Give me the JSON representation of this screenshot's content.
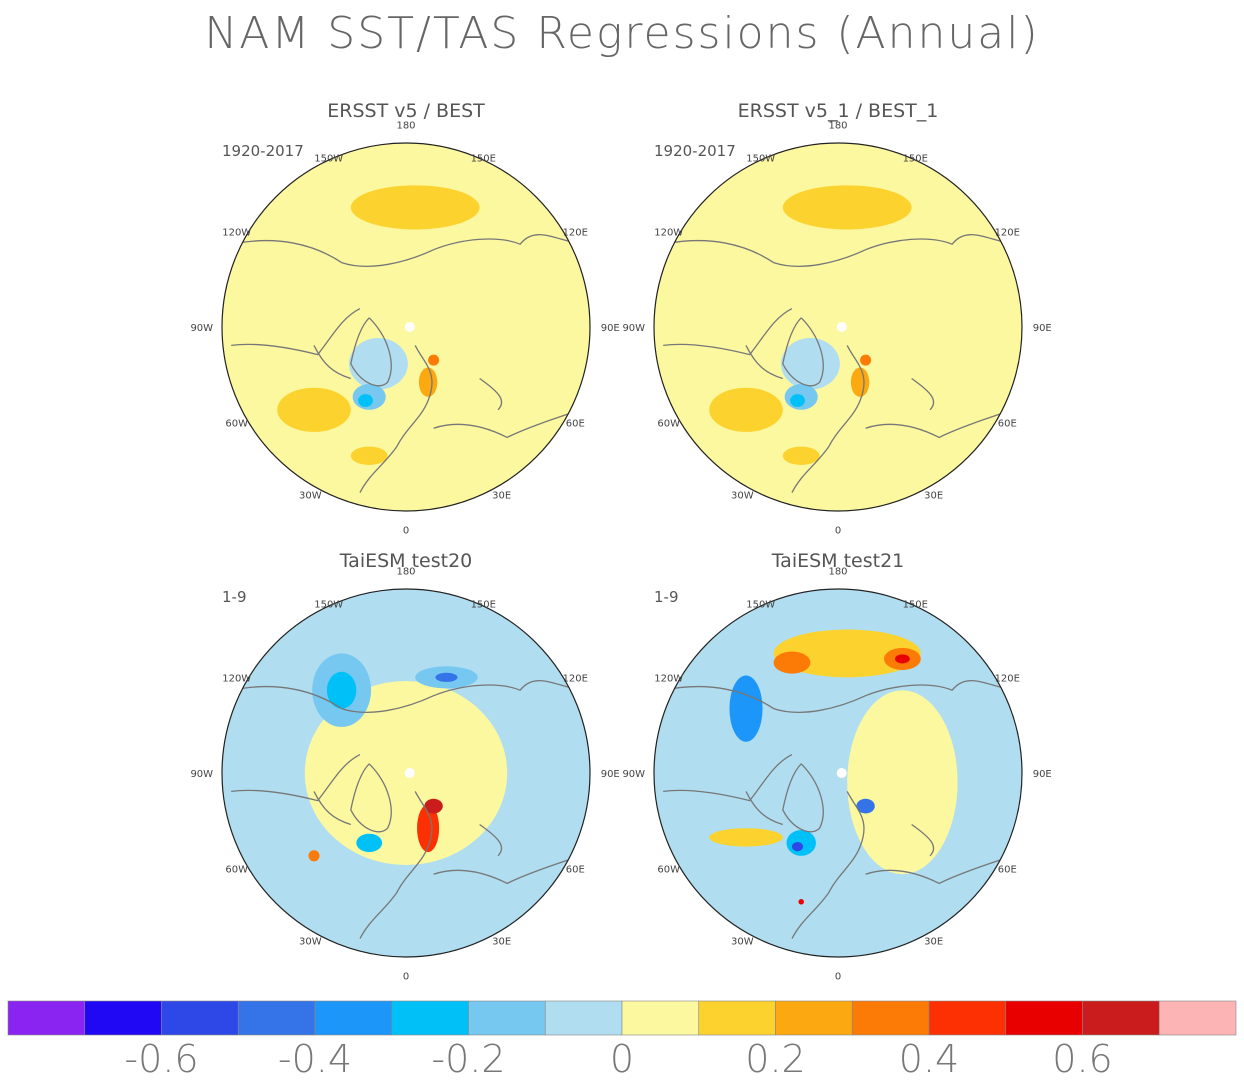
{
  "title": "NAM SST/TAS Regressions (Annual)",
  "panels": [
    {
      "title": "ERSST v5 / BEST",
      "period": "1920-2017",
      "lon_labels": {
        "top": "180",
        "ul": "150W",
        "ur": "150E",
        "l1": "120W",
        "r1": "120E",
        "l2": "90W",
        "r2": "90E",
        "l3": "60W",
        "r3": "60E",
        "ll": "30W",
        "lr": "30E",
        "bottom": "0"
      },
      "features": [
        {
          "kind": "ring_bg",
          "level": 0.05
        },
        {
          "kind": "blob",
          "level": 0.15,
          "at": "n_pacific",
          "rx": 0.35,
          "ry": 0.12
        },
        {
          "kind": "blob",
          "level": 0.15,
          "at": "n_atlantic_w",
          "rx": 0.2,
          "ry": 0.12
        },
        {
          "kind": "blob",
          "level": 0.15,
          "at": "w_africa",
          "rx": 0.1,
          "ry": 0.05
        },
        {
          "kind": "blob",
          "level": -0.05,
          "at": "greenland_e",
          "rx": 0.16,
          "ry": 0.14
        },
        {
          "kind": "blob",
          "level": -0.15,
          "at": "labrador",
          "rx": 0.09,
          "ry": 0.07
        },
        {
          "kind": "blob",
          "level": -0.25,
          "at": "labrador_core",
          "rx": 0.04,
          "ry": 0.035
        },
        {
          "kind": "blob",
          "level": 0.25,
          "at": "scandinavia",
          "rx": 0.05,
          "ry": 0.08
        },
        {
          "kind": "blob",
          "level": 0.35,
          "at": "barents",
          "rx": 0.03,
          "ry": 0.03
        }
      ]
    },
    {
      "title": "ERSST v5_1 / BEST_1",
      "period": "1920-2017",
      "lon_labels": {
        "top": "180",
        "ul": "150W",
        "ur": "150E",
        "l1": "120W",
        "r1": "120E",
        "l2": "90W",
        "r2": "90E",
        "l3": "60W",
        "r3": "60E",
        "ll": "30W",
        "lr": "30E",
        "bottom": "0"
      },
      "features": [
        {
          "kind": "ring_bg",
          "level": 0.05
        },
        {
          "kind": "blob",
          "level": 0.15,
          "at": "n_pacific",
          "rx": 0.35,
          "ry": 0.12
        },
        {
          "kind": "blob",
          "level": 0.15,
          "at": "n_atlantic_w",
          "rx": 0.2,
          "ry": 0.12
        },
        {
          "kind": "blob",
          "level": 0.15,
          "at": "w_africa",
          "rx": 0.1,
          "ry": 0.05
        },
        {
          "kind": "blob",
          "level": -0.05,
          "at": "greenland_e",
          "rx": 0.16,
          "ry": 0.14
        },
        {
          "kind": "blob",
          "level": -0.15,
          "at": "labrador",
          "rx": 0.09,
          "ry": 0.07
        },
        {
          "kind": "blob",
          "level": -0.25,
          "at": "labrador_core",
          "rx": 0.04,
          "ry": 0.035
        },
        {
          "kind": "blob",
          "level": 0.25,
          "at": "scandinavia",
          "rx": 0.05,
          "ry": 0.08
        },
        {
          "kind": "blob",
          "level": 0.35,
          "at": "barents",
          "rx": 0.03,
          "ry": 0.03
        }
      ]
    },
    {
      "title": "TaiESM test20",
      "period": "1-9",
      "lon_labels": {
        "top": "180",
        "ul": "150W",
        "ur": "150E",
        "l1": "120W",
        "r1": "120E",
        "l2": "90W",
        "r2": "90E",
        "l3": "60W",
        "r3": "60E",
        "ll": "30W",
        "lr": "30E",
        "bottom": "0"
      },
      "features": [
        {
          "kind": "ring_bg",
          "level": -0.05
        },
        {
          "kind": "blob",
          "level": 0.05,
          "at": "center",
          "rx": 0.55,
          "ry": 0.5
        },
        {
          "kind": "blob",
          "level": -0.15,
          "at": "gulf_alaska",
          "rx": 0.16,
          "ry": 0.2
        },
        {
          "kind": "blob",
          "level": -0.25,
          "at": "gulf_alaska",
          "rx": 0.08,
          "ry": 0.1
        },
        {
          "kind": "blob",
          "level": -0.15,
          "at": "okhotsk",
          "rx": 0.17,
          "ry": 0.06
        },
        {
          "kind": "blob",
          "level": -0.45,
          "at": "okhotsk",
          "rx": 0.06,
          "ry": 0.025
        },
        {
          "kind": "blob",
          "level": 0.45,
          "at": "scandinavia",
          "rx": 0.06,
          "ry": 0.13
        },
        {
          "kind": "blob",
          "level": 0.65,
          "at": "barents",
          "rx": 0.05,
          "ry": 0.04
        },
        {
          "kind": "blob",
          "level": -0.25,
          "at": "labrador",
          "rx": 0.07,
          "ry": 0.05
        },
        {
          "kind": "blob",
          "level": 0.35,
          "at": "n_atlantic_w",
          "rx": 0.03,
          "ry": 0.03
        }
      ]
    },
    {
      "title": "TaiESM test21",
      "period": "1-9",
      "lon_labels": {
        "top": "180",
        "ul": "150W",
        "ur": "150E",
        "l1": "120W",
        "r1": "120E",
        "l2": "90W",
        "r2": "90E",
        "l3": "60W",
        "r3": "60E",
        "ll": "30W",
        "lr": "30E",
        "bottom": "0"
      },
      "features": [
        {
          "kind": "ring_bg",
          "level": -0.05
        },
        {
          "kind": "blob",
          "level": 0.05,
          "at": "east",
          "rx": 0.3,
          "ry": 0.5
        },
        {
          "kind": "blob",
          "level": 0.15,
          "at": "n_pacific",
          "rx": 0.4,
          "ry": 0.13
        },
        {
          "kind": "blob",
          "level": 0.35,
          "at": "n_pacific_w",
          "rx": 0.1,
          "ry": 0.06
        },
        {
          "kind": "blob",
          "level": 0.35,
          "at": "n_pacific_e",
          "rx": 0.1,
          "ry": 0.06
        },
        {
          "kind": "blob",
          "level": 0.55,
          "at": "n_pacific_e",
          "rx": 0.04,
          "ry": 0.025
        },
        {
          "kind": "blob",
          "level": -0.35,
          "at": "gulf_alaska_w",
          "rx": 0.09,
          "ry": 0.18
        },
        {
          "kind": "blob",
          "level": 0.15,
          "at": "n_atlantic_band",
          "rx": 0.2,
          "ry": 0.05
        },
        {
          "kind": "blob",
          "level": -0.25,
          "at": "labrador",
          "rx": 0.08,
          "ry": 0.07
        },
        {
          "kind": "blob",
          "level": -0.55,
          "at": "labrador_core",
          "rx": 0.03,
          "ry": 0.025
        },
        {
          "kind": "blob",
          "level": -0.45,
          "at": "barents",
          "rx": 0.05,
          "ry": 0.04
        },
        {
          "kind": "blob",
          "level": 0.55,
          "at": "w_africa",
          "rx": 0.015,
          "ry": 0.015
        }
      ]
    }
  ],
  "colorbar": {
    "colors": [
      "#8a24f0",
      "#2008f5",
      "#2e48e8",
      "#3474e8",
      "#1c96f8",
      "#00c0f8",
      "#76c8f0",
      "#b0def0",
      "#fcf8a0",
      "#fcd22e",
      "#fca810",
      "#fc7a06",
      "#fc3002",
      "#e80000",
      "#ca1c1c",
      "#fcb4b4"
    ],
    "ticks": [
      "-0.6",
      "-0.4",
      "-0.2",
      "0",
      "0.2",
      "0.4",
      "0.6"
    ]
  },
  "colors": {
    "land_outline": "#777777",
    "white_land": "#ffffff"
  }
}
